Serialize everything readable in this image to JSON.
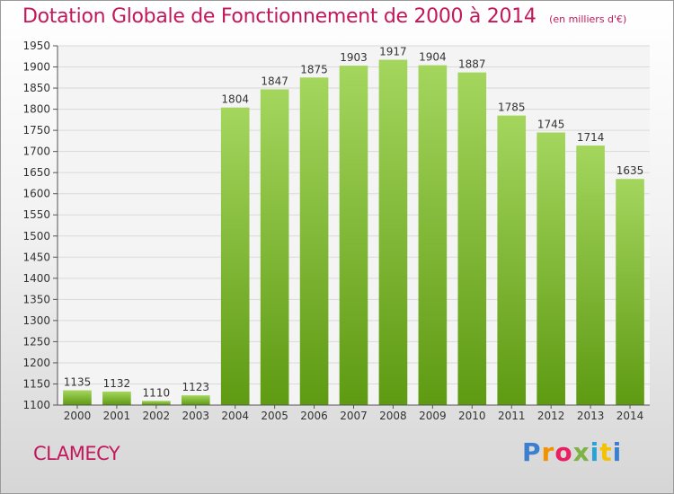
{
  "chart_data": {
    "type": "bar",
    "title": "Dotation Globale de Fonctionnement de 2000 à 2014",
    "subtitle": "(en milliers d'€)",
    "categories": [
      "2000",
      "2001",
      "2002",
      "2003",
      "2004",
      "2005",
      "2006",
      "2007",
      "2008",
      "2009",
      "2010",
      "2011",
      "2012",
      "2013",
      "2014"
    ],
    "values": [
      1135,
      1132,
      1110,
      1123,
      1804,
      1847,
      1875,
      1903,
      1917,
      1904,
      1887,
      1785,
      1745,
      1714,
      1635
    ],
    "ylim": [
      1100,
      1950
    ],
    "yticks": [
      1100,
      1150,
      1200,
      1250,
      1300,
      1350,
      1400,
      1450,
      1500,
      1550,
      1600,
      1650,
      1700,
      1750,
      1800,
      1850,
      1900,
      1950
    ],
    "grid": true,
    "bar_color_top": "#a4d65e",
    "bar_color_bottom": "#5e9a12"
  },
  "footer": {
    "city": "CLAMECY",
    "logo_text": [
      "P",
      "r",
      "o",
      "x",
      "i",
      "t",
      "i"
    ]
  },
  "colors": {
    "title": "#c2185b",
    "grid": "#d9d9d9"
  }
}
